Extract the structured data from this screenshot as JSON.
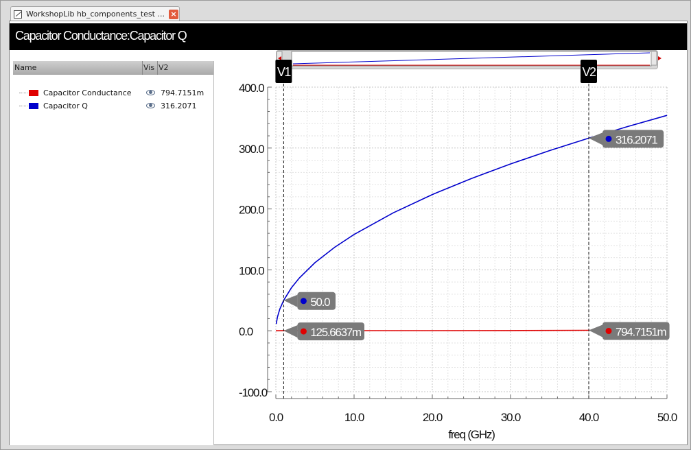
{
  "tab": {
    "title": "WorkshopLib hb_components_test ...",
    "close_label": "×"
  },
  "plot": {
    "title": "Capacitor Conductance:Capacitor Q"
  },
  "legend": {
    "columns": [
      "Name",
      "Vis",
      "V2"
    ],
    "items": [
      {
        "name": "Capacitor Conductance",
        "value": "794.7151m",
        "color": "#e00000"
      },
      {
        "name": "Capacitor Q",
        "value": "316.2071",
        "color": "#0000cc"
      }
    ]
  },
  "markers": {
    "vertical": [
      {
        "label": "V1",
        "x": 1.0
      },
      {
        "label": "V2",
        "x": 40.0
      }
    ],
    "points": [
      {
        "label": "316.2071",
        "x": 40.0,
        "y": 316.2071,
        "color": "#0000cc"
      },
      {
        "label": "50.0",
        "x": 1.0,
        "y": 50.0,
        "color": "#0000cc"
      },
      {
        "label": "125.6637m",
        "x": 1.0,
        "y": 0.1256637,
        "color": "#e00000"
      },
      {
        "label": "794.7151m",
        "x": 40.0,
        "y": 0.7947151,
        "color": "#e00000"
      }
    ]
  },
  "chart_data": {
    "type": "line",
    "xlabel": "freq (GHz)",
    "ylabel": "",
    "xlim": [
      0,
      50
    ],
    "ylim": [
      -100,
      400
    ],
    "xticks": [
      "0.0",
      "10.0",
      "20.0",
      "30.0",
      "40.0",
      "50.0"
    ],
    "yticks": [
      "400.0",
      "300.0",
      "200.0",
      "100.0",
      "0.0",
      "-100.0"
    ],
    "grid": true,
    "series": [
      {
        "name": "Capacitor Q",
        "color": "#0000cc",
        "x": [
          0.05,
          0.2,
          0.5,
          1.0,
          2.0,
          3.0,
          5.0,
          7.5,
          10.0,
          15.0,
          20.0,
          25.0,
          30.0,
          35.0,
          40.0,
          45.0,
          50.0
        ],
        "y": [
          11.2,
          22.4,
          35.4,
          50.0,
          70.7,
          86.6,
          111.8,
          136.9,
          158.1,
          193.6,
          223.6,
          250.0,
          273.9,
          295.8,
          316.2,
          335.4,
          353.6
        ]
      },
      {
        "name": "Capacitor Conductance",
        "color": "#e00000",
        "x": [
          0.0,
          1.0,
          10.0,
          20.0,
          30.0,
          40.0,
          50.0
        ],
        "y": [
          0.0,
          0.1257,
          0.199,
          0.281,
          0.344,
          0.795,
          0.89
        ]
      }
    ]
  }
}
